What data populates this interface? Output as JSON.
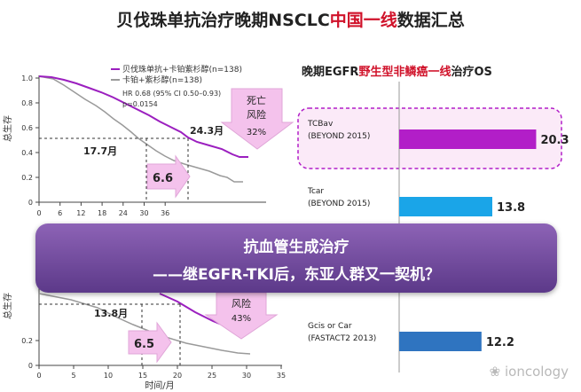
{
  "title": {
    "part1": "贝伐珠单抗治疗晚期NSCLC",
    "part2": "中国一线",
    "part3": "数据汇总"
  },
  "km_top": {
    "y_label": "总生存",
    "legend": [
      "贝伐珠单抗+卡铂紫杉醇(n=138)",
      "卡铂+紫杉醇(n=138)"
    ],
    "hr": "HR 0.68 (95% CI 0.50–0.93)",
    "p": "p=0.0154",
    "median_ctrl": "17.7月",
    "median_trt": "24.3月",
    "gain": "6.6",
    "risk": [
      "死亡",
      "风险",
      "32%"
    ],
    "x_ticks": [
      "0",
      "6",
      "12",
      "18",
      "24",
      "30",
      "36"
    ],
    "y_ticks": [
      "0",
      "0.2",
      "0.4",
      "0.6",
      "0.8",
      "1.0"
    ],
    "colors": {
      "treatment": "#9b1fbf",
      "control": "#9a9a9a"
    }
  },
  "km_bottom": {
    "y_label": "总生存",
    "x_label": "时间/月",
    "median_ctrl": "13.8月",
    "gain": "6.5",
    "risk": [
      "风险",
      "43%"
    ],
    "x_ticks": [
      "0",
      "5",
      "10",
      "15",
      "20",
      "25",
      "30",
      "35"
    ],
    "y_ticks": [
      "0",
      "0.2"
    ]
  },
  "banner": {
    "line1": "抗血管生成治疗",
    "line2": "——继EGFR-TKI后，东亚人群又一契机？"
  },
  "right_title": {
    "part1": "晚期EGFR",
    "part2": "野生型非鳞癌一线",
    "part3": "治疗OS"
  },
  "chart_data": {
    "type": "bar",
    "title": "晚期EGFR野生型非鳞癌一线治疗OS",
    "categories": [
      "TCBav (BEYOND 2015)",
      "Tcar (BEYOND 2015)",
      "Gcis or Car (FASTACT2 2013)"
    ],
    "values": [
      20.3,
      13.8,
      12.2
    ],
    "colors": [
      "#b21ec8",
      "#1aa5e8",
      "#2f74c0"
    ]
  },
  "bars": [
    {
      "l1": "TCBav",
      "l2": "(BEYOND 2015)",
      "value": "20.3"
    },
    {
      "l1": "Tcar",
      "l2": "(BEYOND 2015)",
      "value": "13.8"
    },
    {
      "l1": "Gcis or Car",
      "l2": "(FASTACT2 2013)",
      "value": "12.2"
    }
  ],
  "watermark": "ioncology"
}
